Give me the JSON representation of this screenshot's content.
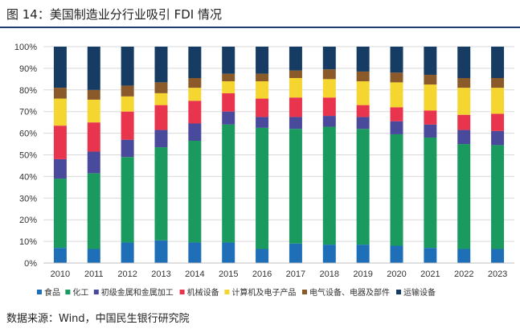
{
  "title": "图 14：美国制造业分行业吸引 FDI 情况",
  "source": "数据来源：Wind，中国民生银行研究院",
  "chart_data": {
    "type": "bar",
    "stacked": true,
    "percent": true,
    "categories": [
      "2010",
      "2011",
      "2012",
      "2013",
      "2014",
      "2015",
      "2016",
      "2017",
      "2018",
      "2019",
      "2020",
      "2021",
      "2022",
      "2023"
    ],
    "yticks": [
      "0%",
      "10%",
      "20%",
      "30%",
      "40%",
      "50%",
      "60%",
      "70%",
      "80%",
      "90%",
      "100%"
    ],
    "ylim": [
      0,
      100
    ],
    "legend_position": "bottom",
    "series": [
      {
        "name": "食品",
        "color": "#1f6fb8",
        "values": [
          7,
          6.5,
          9.5,
          10.5,
          9.5,
          9.5,
          6.5,
          9,
          8.5,
          8.5,
          8,
          7,
          6.5,
          6.5
        ]
      },
      {
        "name": "化工",
        "color": "#1a9a5f",
        "values": [
          32,
          35,
          39.5,
          43,
          47,
          54.5,
          56,
          53,
          54.5,
          53.5,
          51.5,
          51,
          48.5,
          48
        ]
      },
      {
        "name": "初级金属和金属加工",
        "color": "#4a4a9c",
        "values": [
          9,
          10,
          8,
          8,
          8,
          6,
          5,
          5.5,
          5,
          5.5,
          6,
          6,
          6.5,
          6.5
        ]
      },
      {
        "name": "机械设备",
        "color": "#e8344c",
        "values": [
          15.5,
          13.5,
          13,
          11.5,
          10.5,
          8.5,
          8.5,
          9,
          8.5,
          5.5,
          6.5,
          6.5,
          7,
          8
        ]
      },
      {
        "name": "计算机及电子产品",
        "color": "#f5d530",
        "values": [
          12.5,
          10.5,
          7,
          5.5,
          6,
          5.5,
          8,
          9,
          8.5,
          11,
          11.5,
          12,
          12.5,
          12
        ]
      },
      {
        "name": "电气设备、电器及部件",
        "color": "#8b5a2b",
        "values": [
          5,
          4.5,
          5,
          5,
          4.5,
          3.5,
          3.5,
          3.5,
          4.5,
          4.5,
          4.5,
          4.5,
          4.5,
          4.5
        ]
      },
      {
        "name": "运输设备",
        "color": "#163c63",
        "values": [
          19,
          20,
          18,
          16.5,
          14.5,
          12.5,
          12.5,
          11,
          10.5,
          11.5,
          12,
          13,
          14.5,
          14.5
        ]
      }
    ]
  }
}
